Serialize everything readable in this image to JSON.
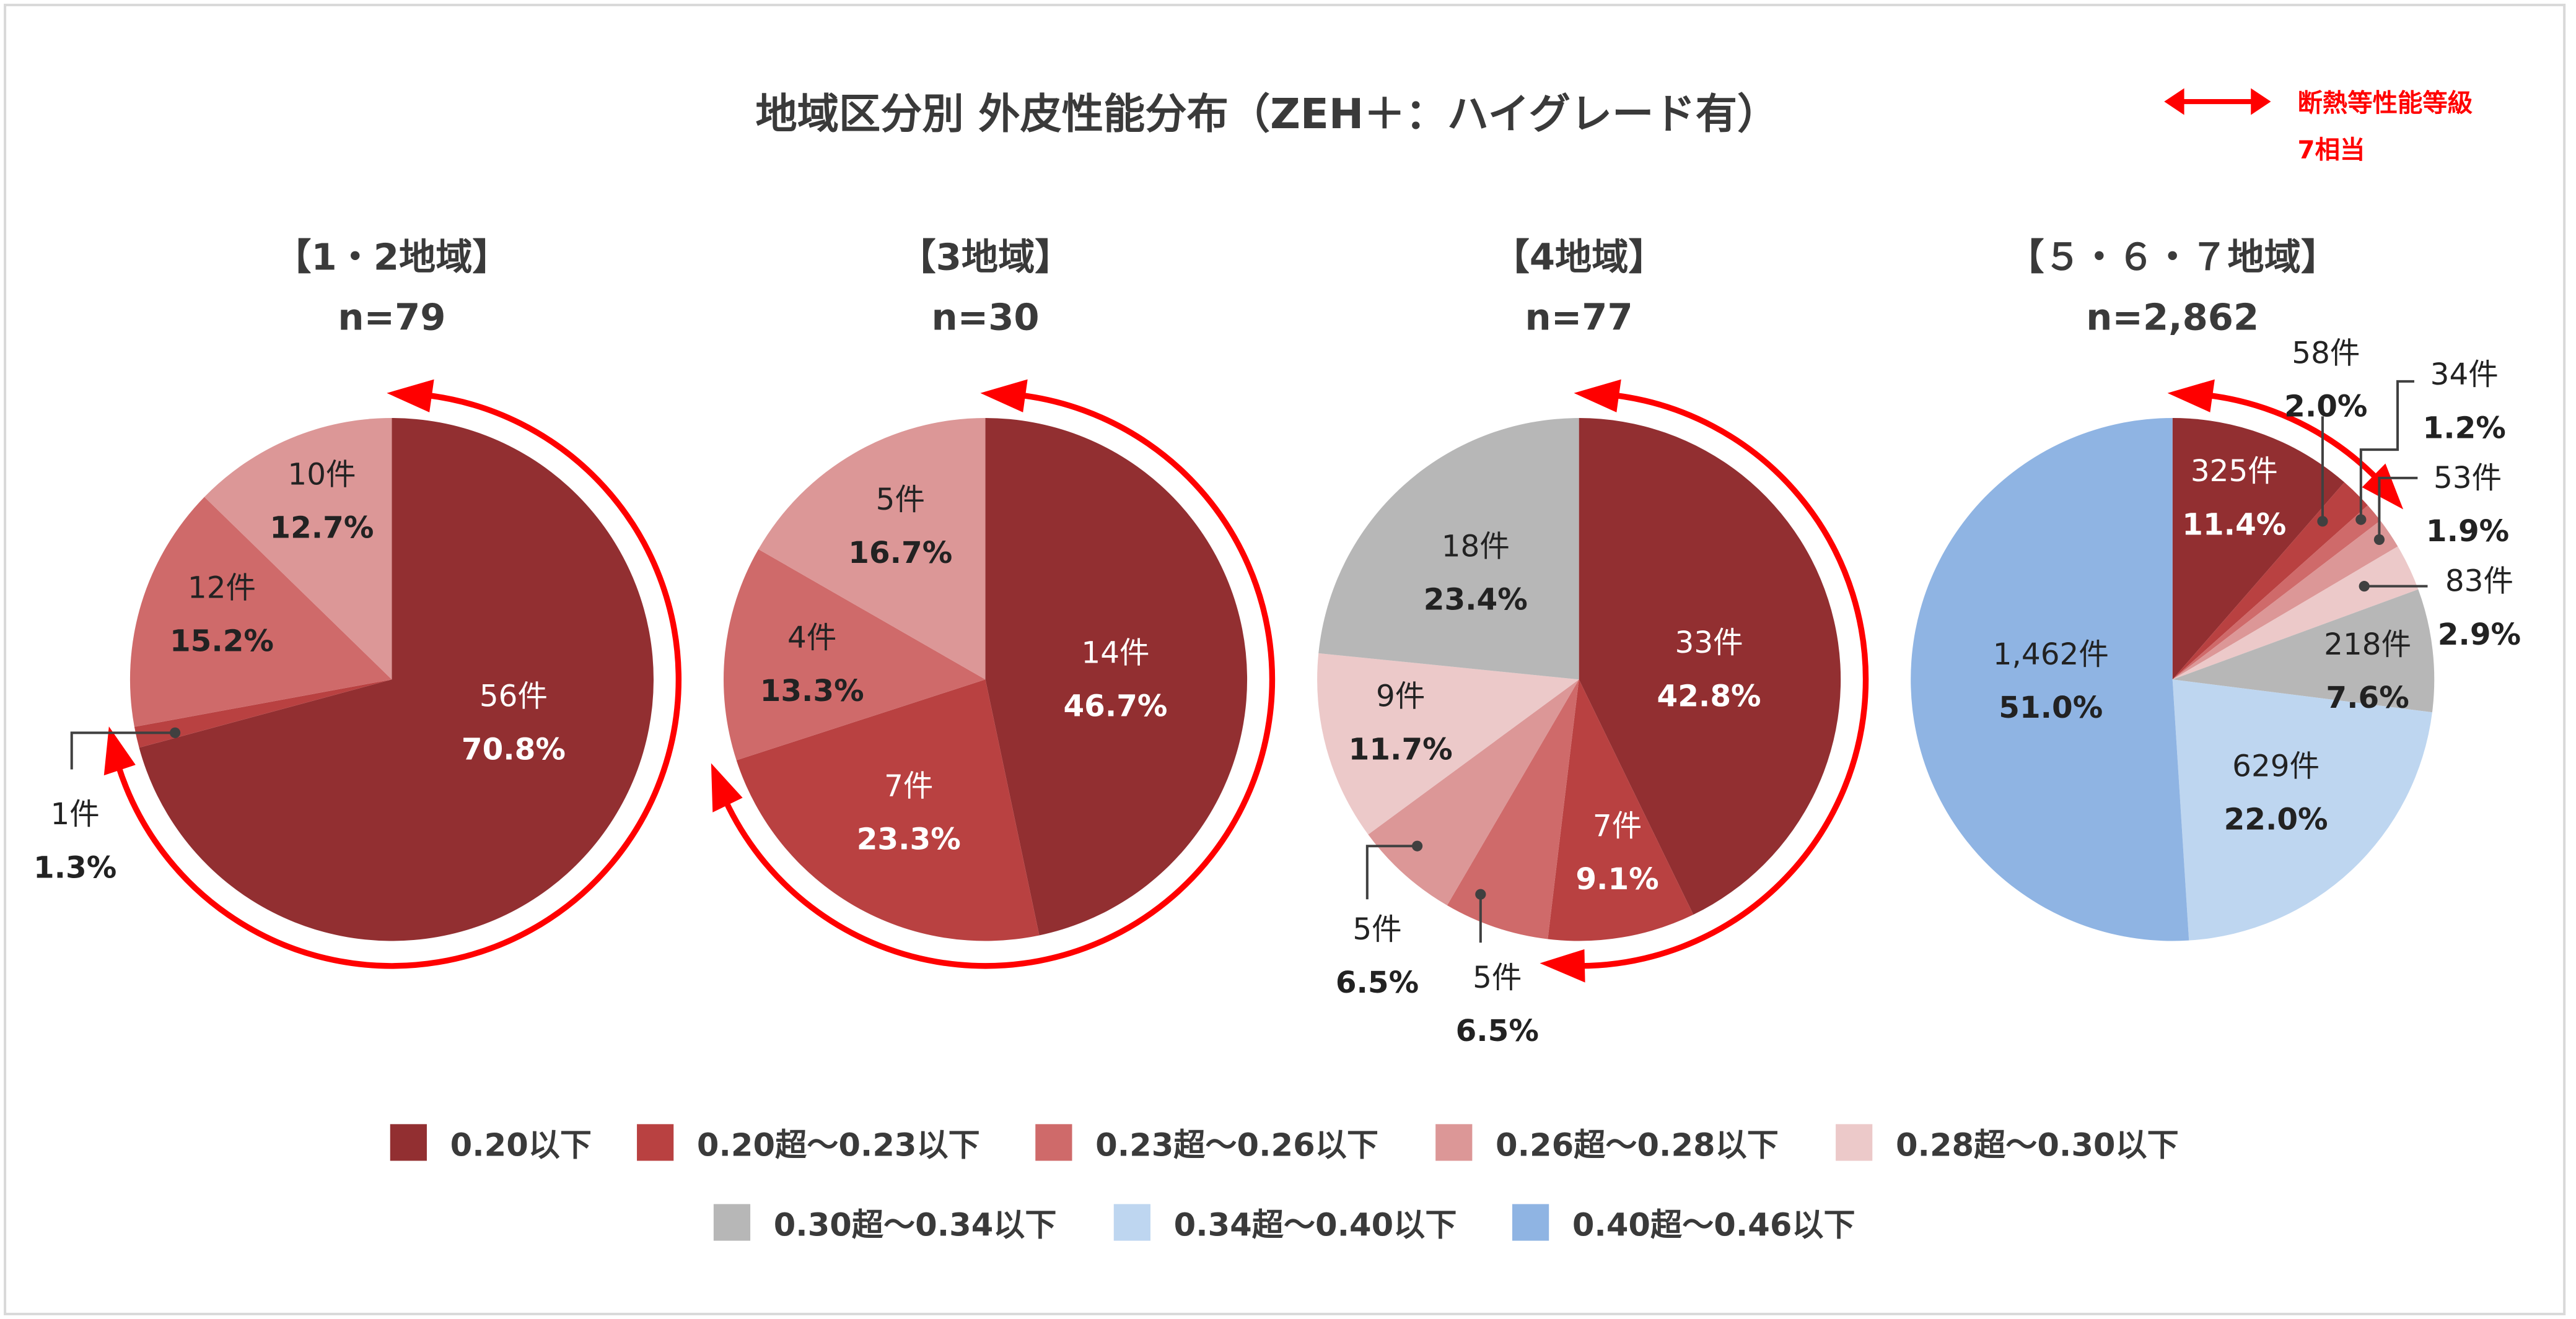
{
  "title": "地域区分別 外皮性能分布（ZEH＋：ハイグレード有）",
  "arrow_note": {
    "line1": "断熱等性能等級",
    "line2": "7相当",
    "color": "#ff0000"
  },
  "legend": [
    {
      "label": "0.20以下",
      "color": "#922f31"
    },
    {
      "label": "0.20超～0.23以下",
      "color": "#b94141"
    },
    {
      "label": "0.23超～0.26以下",
      "color": "#cf6a6a"
    },
    {
      "label": "0.26超～0.28以下",
      "color": "#dc9797"
    },
    {
      "label": "0.28超～0.30以下",
      "color": "#ecc9c9"
    },
    {
      "label": "0.30超～0.34以下",
      "color": "#b7b7b7"
    },
    {
      "label": "0.34超～0.40以下",
      "color": "#bed6f0"
    },
    {
      "label": "0.40超～0.46以下",
      "color": "#8fb4e3"
    }
  ],
  "chart_data": [
    {
      "type": "pie",
      "title": "【1・2地域】",
      "n": "n=79",
      "arrow_categories": 2,
      "slices": [
        {
          "category": "0.20以下",
          "value": 70.8,
          "count": "56件",
          "percent": "70.8%"
        },
        {
          "category": "0.20超～0.23以下",
          "value": 1.3,
          "count": "1件",
          "percent": "1.3%"
        },
        {
          "category": "0.23超～0.26以下",
          "value": 15.2,
          "count": "12件",
          "percent": "15.2%"
        },
        {
          "category": "0.26超～0.28以下",
          "value": 12.7,
          "count": "10件",
          "percent": "12.7%"
        }
      ]
    },
    {
      "type": "pie",
      "title": "【3地域】",
      "n": "n=30",
      "arrow_categories": 2,
      "slices": [
        {
          "category": "0.20以下",
          "value": 46.7,
          "count": "14件",
          "percent": "46.7%"
        },
        {
          "category": "0.20超～0.23以下",
          "value": 23.3,
          "count": "7件",
          "percent": "23.3%"
        },
        {
          "category": "0.23超～0.26以下",
          "value": 13.3,
          "count": "4件",
          "percent": "13.3%"
        },
        {
          "category": "0.26超～0.28以下",
          "value": 16.7,
          "count": "5件",
          "percent": "16.7%"
        }
      ]
    },
    {
      "type": "pie",
      "title": "【4地域】",
      "n": "n=77",
      "arrow_categories": 2,
      "slices": [
        {
          "category": "0.20以下",
          "value": 42.8,
          "count": "33件",
          "percent": "42.8%"
        },
        {
          "category": "0.20超～0.23以下",
          "value": 9.1,
          "count": "7件",
          "percent": "9.1%"
        },
        {
          "category": "0.23超～0.26以下",
          "value": 6.5,
          "count": "5件",
          "percent": "6.5%"
        },
        {
          "category": "0.26超～0.28以下",
          "value": 6.5,
          "count": "5件",
          "percent": "6.5%"
        },
        {
          "category": "0.28超～0.30以下",
          "value": 11.7,
          "count": "9件",
          "percent": "11.7%"
        },
        {
          "category": "0.30超～0.34以下",
          "value": 23.4,
          "count": "18件",
          "percent": "23.4%"
        }
      ]
    },
    {
      "type": "pie",
      "title": "【５・６・７地域】",
      "n": "n=2,862",
      "arrow_categories": 3,
      "slices": [
        {
          "category": "0.20以下",
          "value": 11.4,
          "count": "325件",
          "percent": "11.4%"
        },
        {
          "category": "0.20超～0.23以下",
          "value": 2.0,
          "count": "58件",
          "percent": "2.0%"
        },
        {
          "category": "0.23超～0.26以下",
          "value": 1.2,
          "count": "34件",
          "percent": "1.2%"
        },
        {
          "category": "0.26超～0.28以下",
          "value": 1.9,
          "count": "53件",
          "percent": "1.9%"
        },
        {
          "category": "0.28超～0.30以下",
          "value": 2.9,
          "count": "83件",
          "percent": "2.9%"
        },
        {
          "category": "0.30超～0.34以下",
          "value": 7.6,
          "count": "218件",
          "percent": "7.6%"
        },
        {
          "category": "0.34超～0.40以下",
          "value": 22.0,
          "count": "629件",
          "percent": "22.0%"
        },
        {
          "category": "0.40超～0.46以下",
          "value": 51.0,
          "count": "1,462件",
          "percent": "51.0%"
        }
      ]
    }
  ]
}
